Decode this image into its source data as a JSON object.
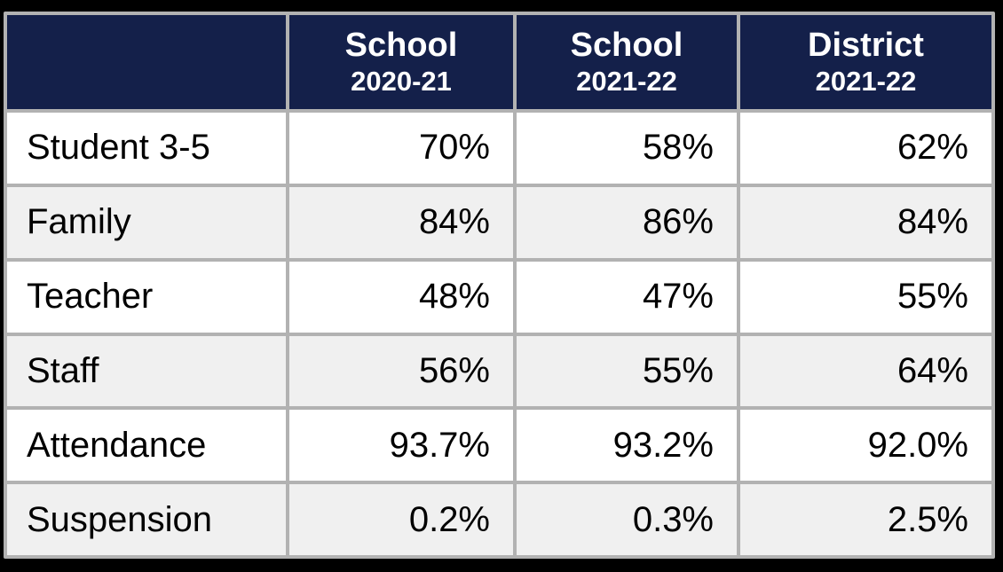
{
  "colors": {
    "outer_frame": "#000000",
    "grid_border": "#b2b2b2",
    "header_bg": "#14204a",
    "header_text": "#ffffff",
    "row_bg": "#ffffff",
    "row_alt_bg": "#f0f0f0",
    "body_text": "#000000"
  },
  "chart_data": {
    "type": "table",
    "title": "",
    "columns": [
      {
        "label": "",
        "sublabel": ""
      },
      {
        "label": "School",
        "sublabel": "2020-21"
      },
      {
        "label": "School",
        "sublabel": "2021-22"
      },
      {
        "label": "District",
        "sublabel": "2021-22"
      }
    ],
    "rows": [
      {
        "label": "Student 3-5",
        "values": [
          "70%",
          "58%",
          "62%"
        ]
      },
      {
        "label": "Family",
        "values": [
          "84%",
          "86%",
          "84%"
        ]
      },
      {
        "label": "Teacher",
        "values": [
          "48%",
          "47%",
          "55%"
        ]
      },
      {
        "label": "Staff",
        "values": [
          "56%",
          "55%",
          "64%"
        ]
      },
      {
        "label": "Attendance",
        "values": [
          "93.7%",
          "93.2%",
          "92.0%"
        ]
      },
      {
        "label": "Suspension",
        "values": [
          "0.2%",
          "0.3%",
          "2.5%"
        ]
      }
    ]
  }
}
